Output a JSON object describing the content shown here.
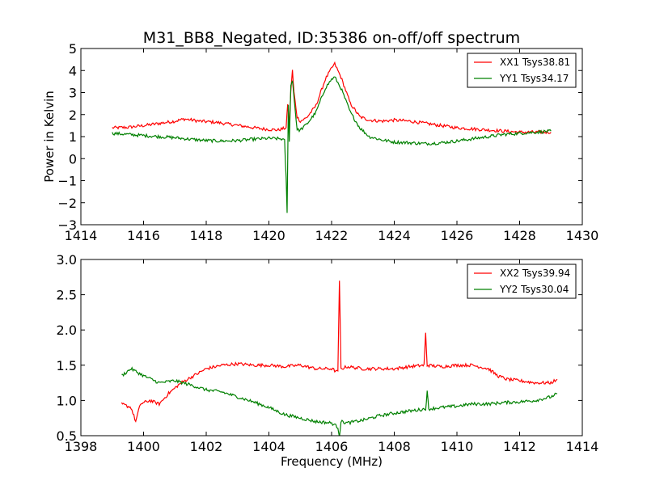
{
  "chart_data": [
    {
      "type": "line",
      "title": "M31_BB8_Negated, ID:35386 on-off/off spectrum",
      "xlabel": "",
      "ylabel": "Power in Kelvin",
      "xlim": [
        1414,
        1430
      ],
      "ylim": [
        -3,
        5
      ],
      "xticks": [
        "1414",
        "1416",
        "1418",
        "1420",
        "1422",
        "1424",
        "1426",
        "1428",
        "1430"
      ],
      "yticks": [
        "−3",
        "−2",
        "−1",
        "0",
        "1",
        "2",
        "3",
        "4",
        "5"
      ],
      "legend_position": "top-right",
      "grid": false,
      "series": [
        {
          "name": "XX1 Tsys38.81",
          "color": "#ff0000",
          "x": [
            1415.0,
            1415.5,
            1416.0,
            1416.5,
            1417.0,
            1417.3,
            1417.8,
            1418.3,
            1418.8,
            1419.3,
            1419.8,
            1420.3,
            1420.55,
            1420.6,
            1420.65,
            1420.7,
            1420.75,
            1420.8,
            1420.9,
            1421.0,
            1421.2,
            1421.5,
            1421.8,
            1422.0,
            1422.1,
            1422.3,
            1422.6,
            1422.9,
            1423.2,
            1423.6,
            1424.0,
            1424.5,
            1425.0,
            1425.5,
            1426.0,
            1426.5,
            1427.0,
            1427.5,
            1428.0,
            1428.5,
            1429.0
          ],
          "y": [
            1.4,
            1.42,
            1.5,
            1.6,
            1.7,
            1.8,
            1.7,
            1.65,
            1.55,
            1.45,
            1.35,
            1.3,
            1.4,
            2.5,
            1.5,
            3.1,
            4.0,
            3.0,
            1.9,
            1.7,
            1.85,
            2.4,
            3.6,
            4.1,
            4.3,
            3.7,
            2.5,
            1.9,
            1.75,
            1.7,
            1.75,
            1.7,
            1.6,
            1.5,
            1.4,
            1.35,
            1.3,
            1.25,
            1.2,
            1.2,
            1.2
          ]
        },
        {
          "name": "YY1 Tsys34.17",
          "color": "#008000",
          "x": [
            1415.0,
            1415.5,
            1416.0,
            1416.5,
            1417.0,
            1417.5,
            1418.0,
            1418.5,
            1419.0,
            1419.5,
            1420.0,
            1420.4,
            1420.5,
            1420.55,
            1420.58,
            1420.62,
            1420.65,
            1420.7,
            1420.75,
            1420.8,
            1420.9,
            1421.0,
            1421.2,
            1421.5,
            1421.8,
            1422.0,
            1422.1,
            1422.3,
            1422.6,
            1422.9,
            1423.2,
            1423.6,
            1424.0,
            1424.5,
            1425.0,
            1425.5,
            1426.0,
            1426.5,
            1427.0,
            1427.5,
            1428.0,
            1428.5,
            1429.0
          ],
          "y": [
            1.15,
            1.1,
            1.05,
            1.0,
            0.95,
            0.88,
            0.82,
            0.8,
            0.82,
            0.88,
            0.92,
            0.9,
            0.8,
            -0.9,
            -2.5,
            2.5,
            0.8,
            3.3,
            3.6,
            2.8,
            1.3,
            1.3,
            1.55,
            2.1,
            3.2,
            3.6,
            3.7,
            3.2,
            2.1,
            1.4,
            1.0,
            0.85,
            0.75,
            0.72,
            0.68,
            0.72,
            0.8,
            0.9,
            1.0,
            1.1,
            1.15,
            1.2,
            1.25
          ]
        }
      ]
    },
    {
      "type": "line",
      "title": "",
      "xlabel": "Frequency (MHz)",
      "ylabel": "",
      "xlim": [
        1398,
        1414
      ],
      "ylim": [
        0.5,
        3.0
      ],
      "xticks": [
        "1398",
        "1400",
        "1402",
        "1404",
        "1406",
        "1408",
        "1410",
        "1412",
        "1414"
      ],
      "yticks": [
        "0.5",
        "1.0",
        "1.5",
        "2.0",
        "2.5",
        "3.0"
      ],
      "legend_position": "top-right",
      "grid": false,
      "series": [
        {
          "name": "XX2 Tsys39.94",
          "color": "#ff0000",
          "x": [
            1399.3,
            1399.6,
            1399.75,
            1399.9,
            1400.2,
            1400.5,
            1400.8,
            1401.2,
            1401.6,
            1402.0,
            1402.5,
            1403.0,
            1403.5,
            1404.0,
            1404.5,
            1405.0,
            1405.5,
            1406.0,
            1406.2,
            1406.25,
            1406.3,
            1406.5,
            1407.0,
            1407.5,
            1408.0,
            1408.5,
            1408.95,
            1409.0,
            1409.05,
            1409.5,
            1410.0,
            1410.5,
            1411.0,
            1411.3,
            1411.6,
            1412.0,
            1412.5,
            1413.0,
            1413.2
          ],
          "y": [
            0.95,
            0.9,
            0.7,
            0.95,
            1.0,
            0.95,
            1.1,
            1.25,
            1.35,
            1.45,
            1.5,
            1.52,
            1.5,
            1.5,
            1.48,
            1.5,
            1.45,
            1.45,
            1.4,
            2.68,
            1.45,
            1.48,
            1.45,
            1.45,
            1.45,
            1.48,
            1.5,
            1.95,
            1.5,
            1.48,
            1.5,
            1.5,
            1.45,
            1.35,
            1.3,
            1.28,
            1.25,
            1.25,
            1.3
          ]
        },
        {
          "name": "YY2 Tsys30.04",
          "color": "#008000",
          "x": [
            1399.3,
            1399.6,
            1400.0,
            1400.5,
            1401.0,
            1401.5,
            1402.0,
            1402.5,
            1403.0,
            1403.5,
            1404.0,
            1404.5,
            1405.0,
            1405.5,
            1406.0,
            1406.2,
            1406.25,
            1406.3,
            1406.5,
            1407.0,
            1407.5,
            1408.0,
            1408.5,
            1409.0,
            1409.05,
            1409.1,
            1409.5,
            1410.0,
            1410.5,
            1411.0,
            1411.5,
            1412.0,
            1412.5,
            1413.0,
            1413.2
          ],
          "y": [
            1.35,
            1.45,
            1.35,
            1.25,
            1.28,
            1.22,
            1.15,
            1.12,
            1.05,
            0.98,
            0.9,
            0.8,
            0.75,
            0.7,
            0.68,
            0.62,
            0.5,
            0.7,
            0.68,
            0.72,
            0.78,
            0.82,
            0.85,
            0.88,
            1.12,
            0.88,
            0.9,
            0.92,
            0.95,
            0.95,
            0.97,
            0.98,
            1.0,
            1.05,
            1.1
          ]
        }
      ]
    }
  ]
}
